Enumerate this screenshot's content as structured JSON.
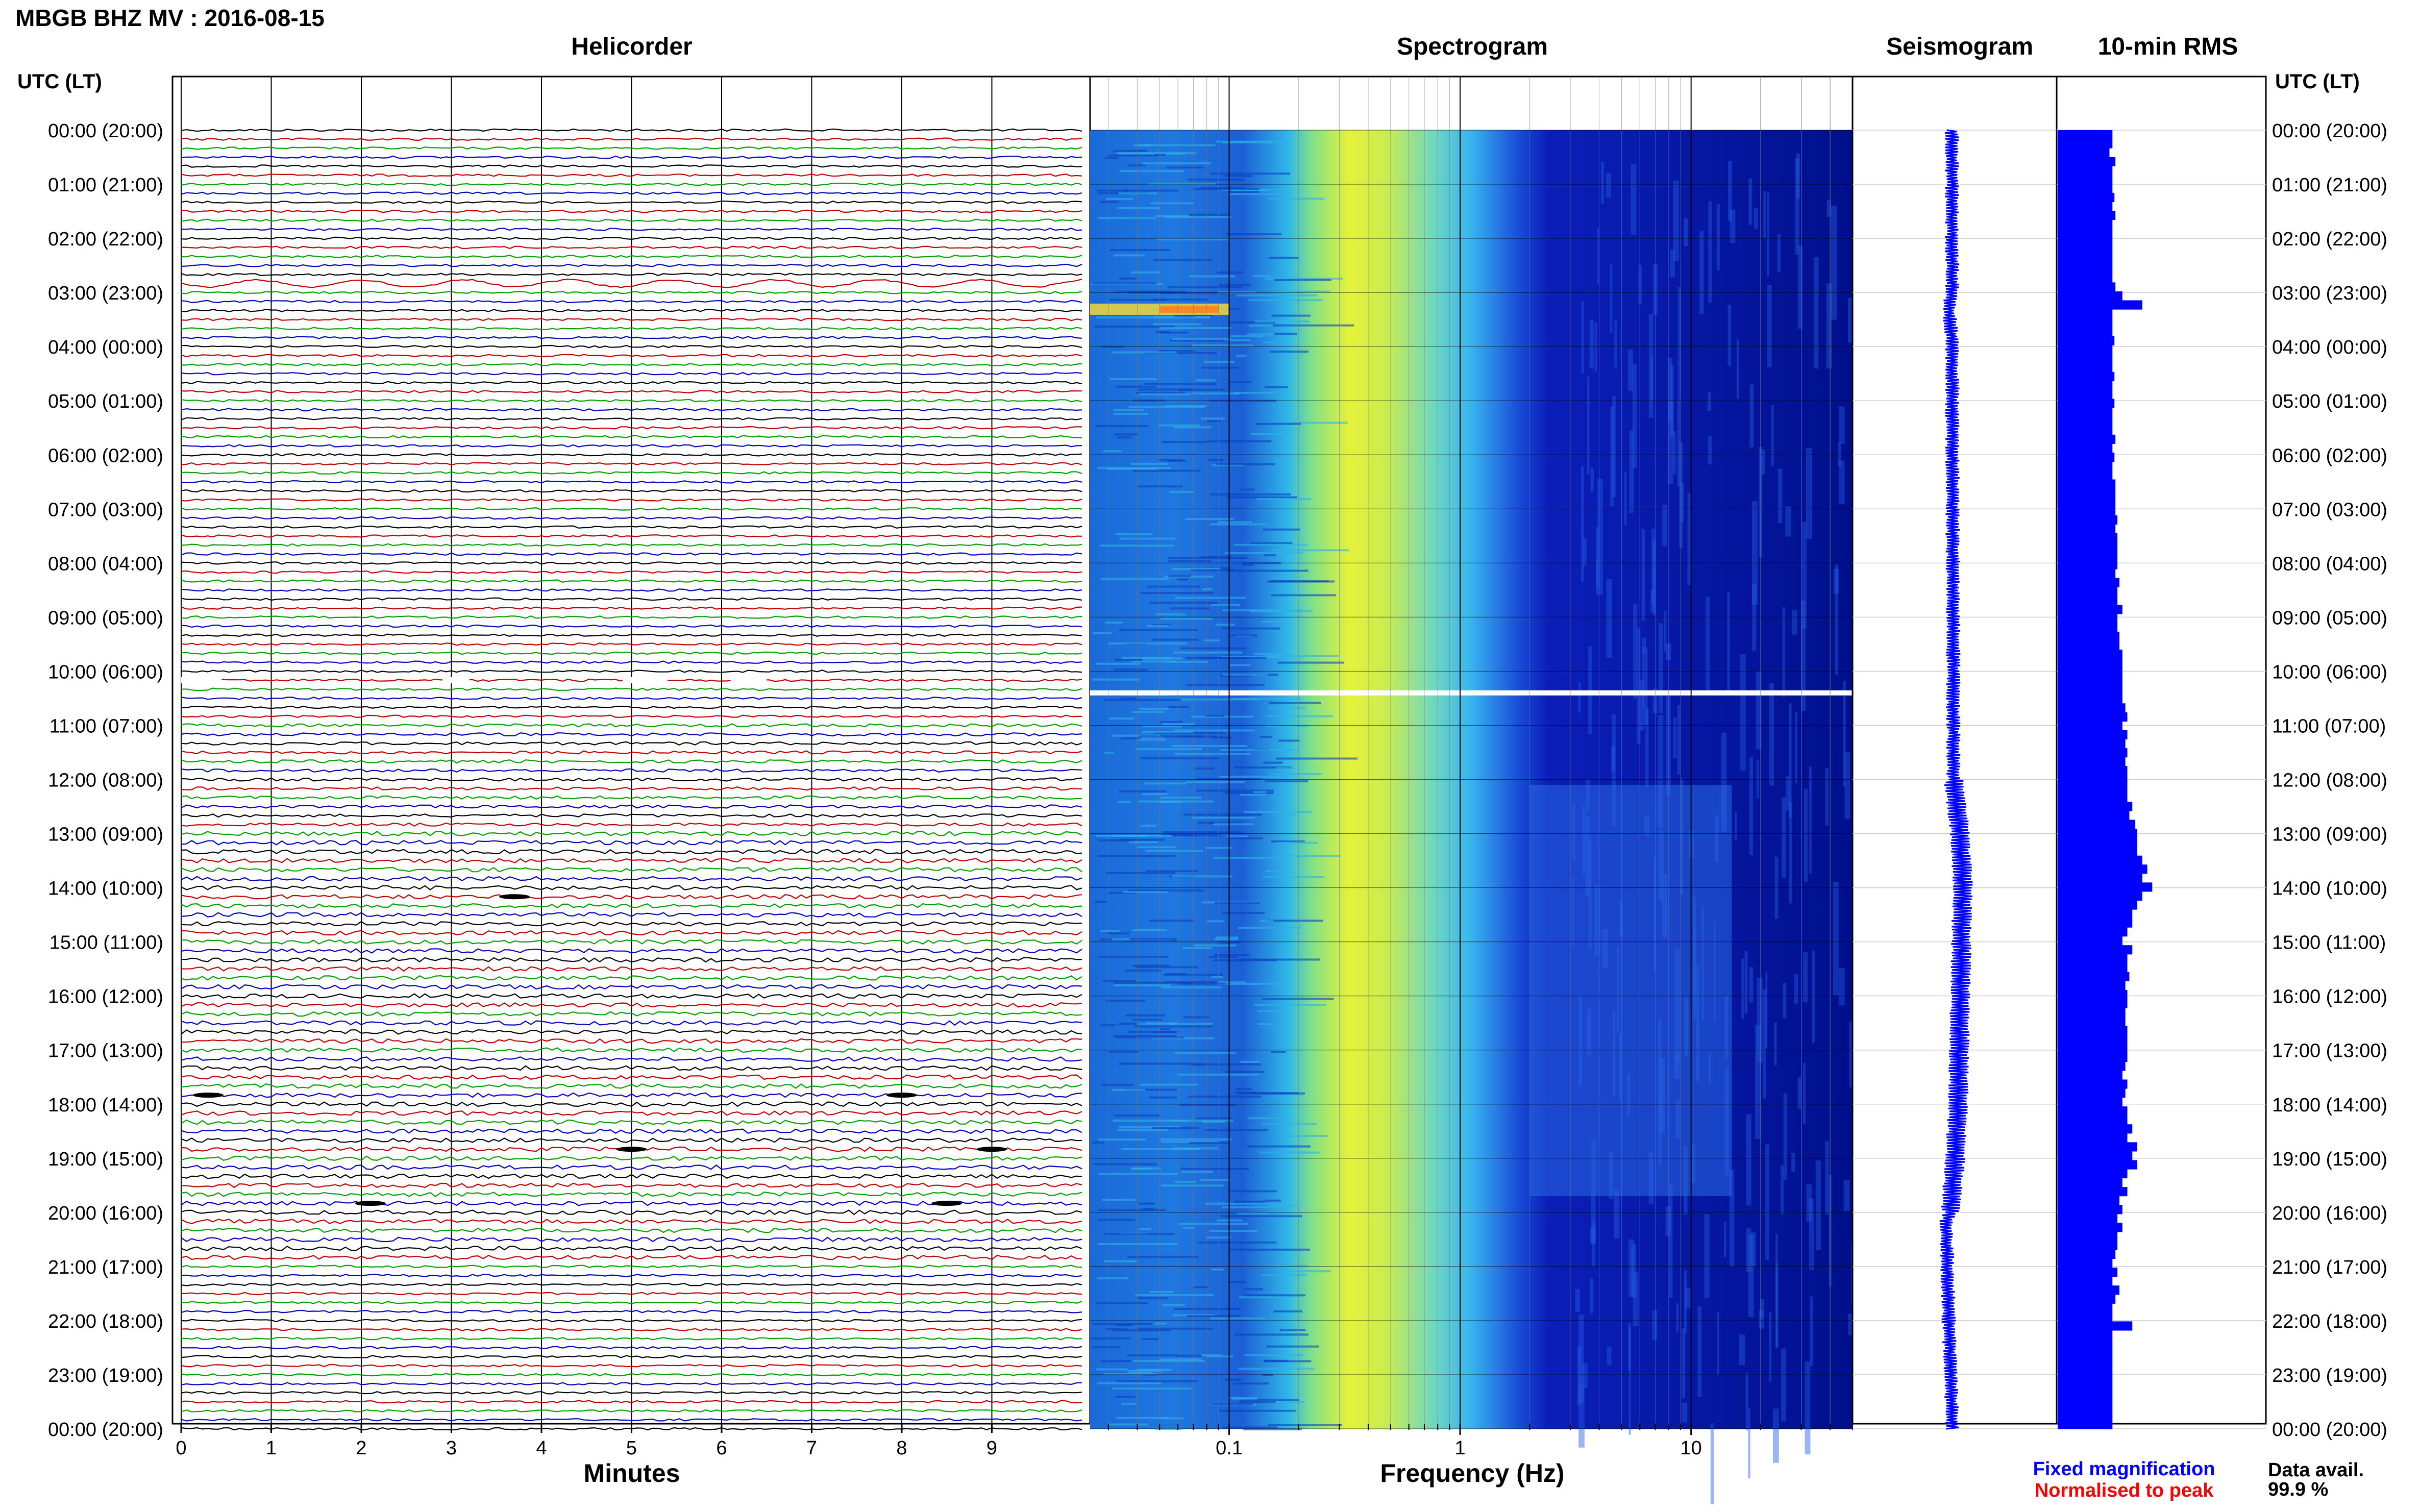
{
  "figure_title": "MBGB BHZ MV : 2016-08-15",
  "panel_titles": {
    "helicorder": "Helicorder",
    "spectrogram": "Spectrogram",
    "seismogram": "Seismogram",
    "rms": "10-min RMS"
  },
  "time_axis_label": "UTC (LT)",
  "time_labels": [
    "00:00 (20:00)",
    "01:00 (21:00)",
    "02:00 (22:00)",
    "03:00 (23:00)",
    "04:00 (00:00)",
    "05:00 (01:00)",
    "06:00 (02:00)",
    "07:00 (03:00)",
    "08:00 (04:00)",
    "09:00 (05:00)",
    "10:00 (06:00)",
    "11:00 (07:00)",
    "12:00 (08:00)",
    "13:00 (09:00)",
    "14:00 (10:00)",
    "15:00 (11:00)",
    "16:00 (12:00)",
    "17:00 (13:00)",
    "18:00 (14:00)",
    "19:00 (15:00)",
    "20:00 (16:00)",
    "21:00 (17:00)",
    "22:00 (18:00)",
    "23:00 (19:00)",
    "00:00 (20:00)"
  ],
  "legend": {
    "fixed": "Fixed magnification",
    "normalised": "Normalised to peak"
  },
  "data_avail": {
    "label": "Data avail.",
    "value": "99.9 %"
  },
  "colors": {
    "trace_cycle": [
      "#000000",
      "#c00000",
      "#00a000",
      "#0000c0"
    ],
    "seismogram": "#0000ff",
    "rms": "#0000ff",
    "spectrogram_low": "#00008b",
    "spectrogram_high": "#ffff00"
  },
  "chart_data": [
    {
      "type": "line",
      "name": "helicorder",
      "title": "Helicorder",
      "xlabel": "Minutes",
      "x_ticks": [
        0,
        1,
        2,
        3,
        4,
        5,
        6,
        7,
        8,
        9
      ],
      "xlim": [
        0,
        10
      ],
      "rows": 145,
      "row_minutes": 10,
      "events_minutes": [
        {
          "row": 17,
          "amplitude": "large"
        },
        {
          "row": 85,
          "minute": 3.7
        },
        {
          "row": 107,
          "minute": 0.3
        },
        {
          "row": 107,
          "minute": 8.0
        },
        {
          "row": 113,
          "minute": 5.0
        },
        {
          "row": 113,
          "minute": 9.0
        },
        {
          "row": 119,
          "minute": 2.1
        },
        {
          "row": 119,
          "minute": 8.5
        }
      ],
      "gap_row": 61
    },
    {
      "type": "heatmap",
      "name": "spectrogram",
      "title": "Spectrogram",
      "xlabel": "Frequency (Hz)",
      "x_scale": "log",
      "xlim": [
        0.025,
        50
      ],
      "x_ticks": [
        0.1,
        1,
        10
      ],
      "x_tick_labels": [
        "0.1",
        "1",
        "10"
      ],
      "ylim_hours": [
        0,
        24
      ],
      "gap_hour": 10.4,
      "peak_band_hz": [
        0.3,
        0.6
      ]
    },
    {
      "type": "line",
      "name": "seismogram",
      "title": "Seismogram",
      "hours": [
        0,
        3,
        3.3,
        4,
        12,
        13,
        14,
        15,
        18,
        19,
        20,
        20.2,
        24
      ],
      "offset": [
        0,
        0,
        -0.1,
        0,
        0.05,
        0.25,
        0.35,
        0.3,
        0.2,
        0.1,
        -0.05,
        -0.2,
        0
      ]
    },
    {
      "type": "bar",
      "name": "rms",
      "title": "10-min RMS",
      "bin_minutes": 10,
      "ylim_hours": [
        0,
        24
      ],
      "xlim": [
        0,
        1
      ],
      "values": [
        0.55,
        0.55,
        0.52,
        0.58,
        0.55,
        0.55,
        0.55,
        0.57,
        0.55,
        0.58,
        0.55,
        0.55,
        0.55,
        0.55,
        0.55,
        0.55,
        0.55,
        0.58,
        0.65,
        0.85,
        0.55,
        0.55,
        0.55,
        0.57,
        0.55,
        0.55,
        0.55,
        0.57,
        0.55,
        0.55,
        0.57,
        0.55,
        0.55,
        0.55,
        0.58,
        0.55,
        0.57,
        0.55,
        0.55,
        0.58,
        0.58,
        0.58,
        0.58,
        0.6,
        0.58,
        0.6,
        0.6,
        0.6,
        0.6,
        0.58,
        0.62,
        0.6,
        0.6,
        0.65,
        0.6,
        0.6,
        0.62,
        0.62,
        0.65,
        0.65,
        0.65,
        0.65,
        0.65,
        0.65,
        0.68,
        0.7,
        0.65,
        0.7,
        0.68,
        0.7,
        0.68,
        0.7,
        0.7,
        0.7,
        0.7,
        0.75,
        0.72,
        0.78,
        0.8,
        0.8,
        0.8,
        0.85,
        0.9,
        0.85,
        0.95,
        0.85,
        0.8,
        0.75,
        0.75,
        0.7,
        0.65,
        0.75,
        0.7,
        0.7,
        0.72,
        0.68,
        0.7,
        0.7,
        0.68,
        0.68,
        0.7,
        0.7,
        0.7,
        0.7,
        0.68,
        0.65,
        0.7,
        0.68,
        0.65,
        0.7,
        0.7,
        0.75,
        0.7,
        0.8,
        0.75,
        0.8,
        0.7,
        0.65,
        0.7,
        0.62,
        0.65,
        0.6,
        0.65,
        0.6,
        0.6,
        0.58,
        0.55,
        0.6,
        0.55,
        0.62,
        0.58,
        0.55,
        0.55,
        0.75,
        0.55,
        0.55,
        0.55,
        0.55,
        0.55,
        0.55,
        0.55,
        0.55,
        0.55,
        0.55,
        0.55
      ]
    }
  ],
  "axis_titles": {
    "minutes": "Minutes",
    "frequency": "Frequency (Hz)"
  }
}
